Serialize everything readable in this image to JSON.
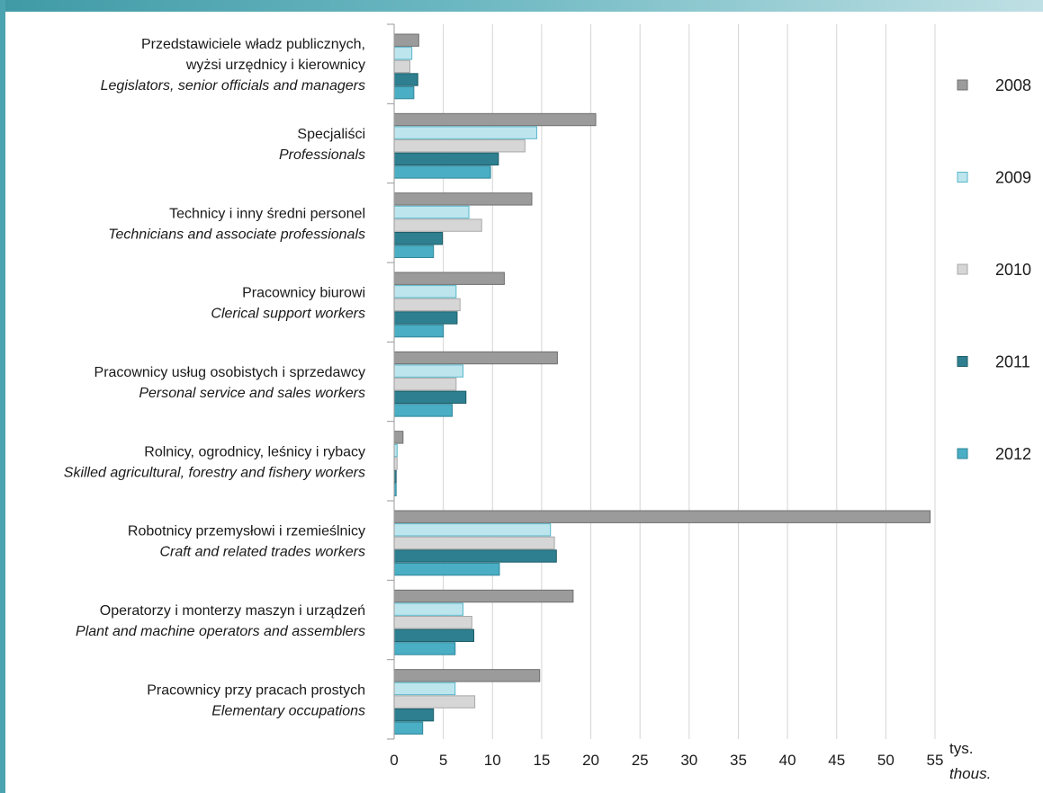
{
  "chart_data": {
    "type": "bar",
    "orientation": "horizontal",
    "unit_pl": "tys.",
    "unit_en": "thous.",
    "xlim": [
      0,
      55
    ],
    "xticks": [
      0,
      5,
      10,
      15,
      20,
      25,
      30,
      35,
      40,
      45,
      50,
      55
    ],
    "grid": true,
    "legend_position": "right",
    "categories": [
      {
        "pl": [
          "Przedstawiciele władz publicznych,",
          "wyżsi urzędnicy i kierownicy"
        ],
        "en": "Legislators, senior officials and managers"
      },
      {
        "pl": [
          "Specjaliści"
        ],
        "en": "Professionals"
      },
      {
        "pl": [
          "Technicy i inny średni personel"
        ],
        "en": "Technicians and associate professionals"
      },
      {
        "pl": [
          "Pracownicy biurowi"
        ],
        "en": "Clerical support workers"
      },
      {
        "pl": [
          "Pracownicy usług osobistych i sprzedawcy"
        ],
        "en": "Personal service and sales workers"
      },
      {
        "pl": [
          "Rolnicy, ogrodnicy, leśnicy i rybacy"
        ],
        "en": "Skilled agricultural, forestry and fishery workers"
      },
      {
        "pl": [
          "Robotnicy przemysłowi i rzemieślnicy"
        ],
        "en": "Craft and related trades workers"
      },
      {
        "pl": [
          "Operatorzy i monterzy maszyn i urządzeń"
        ],
        "en": "Plant and machine operators and assemblers"
      },
      {
        "pl": [
          "Pracownicy przy pracach prostych"
        ],
        "en": "Elementary occupations"
      }
    ],
    "series": [
      {
        "name": "2008",
        "color": "#9b9b9b",
        "stroke": "#6f6f6f",
        "values": [
          2.5,
          20.5,
          14.0,
          11.2,
          16.6,
          0.9,
          54.5,
          18.2,
          14.8
        ]
      },
      {
        "name": "2009",
        "color": "#bde5ee",
        "stroke": "#57b7c9",
        "values": [
          1.8,
          14.5,
          7.6,
          6.3,
          7.0,
          0.3,
          15.9,
          7.0,
          6.2
        ]
      },
      {
        "name": "2010",
        "color": "#d6d6d6",
        "stroke": "#a8a8a8",
        "values": [
          1.6,
          13.3,
          8.9,
          6.7,
          6.3,
          0.3,
          16.3,
          7.9,
          8.2
        ]
      },
      {
        "name": "2011",
        "color": "#2e7f8f",
        "stroke": "#1d5d69",
        "values": [
          2.4,
          10.6,
          4.9,
          6.4,
          7.3,
          0.2,
          16.5,
          8.1,
          4.0
        ]
      },
      {
        "name": "2012",
        "color": "#4aaec4",
        "stroke": "#2d8599",
        "values": [
          2.0,
          9.8,
          4.0,
          5.0,
          5.9,
          0.2,
          10.7,
          6.2,
          2.9
        ]
      }
    ]
  }
}
